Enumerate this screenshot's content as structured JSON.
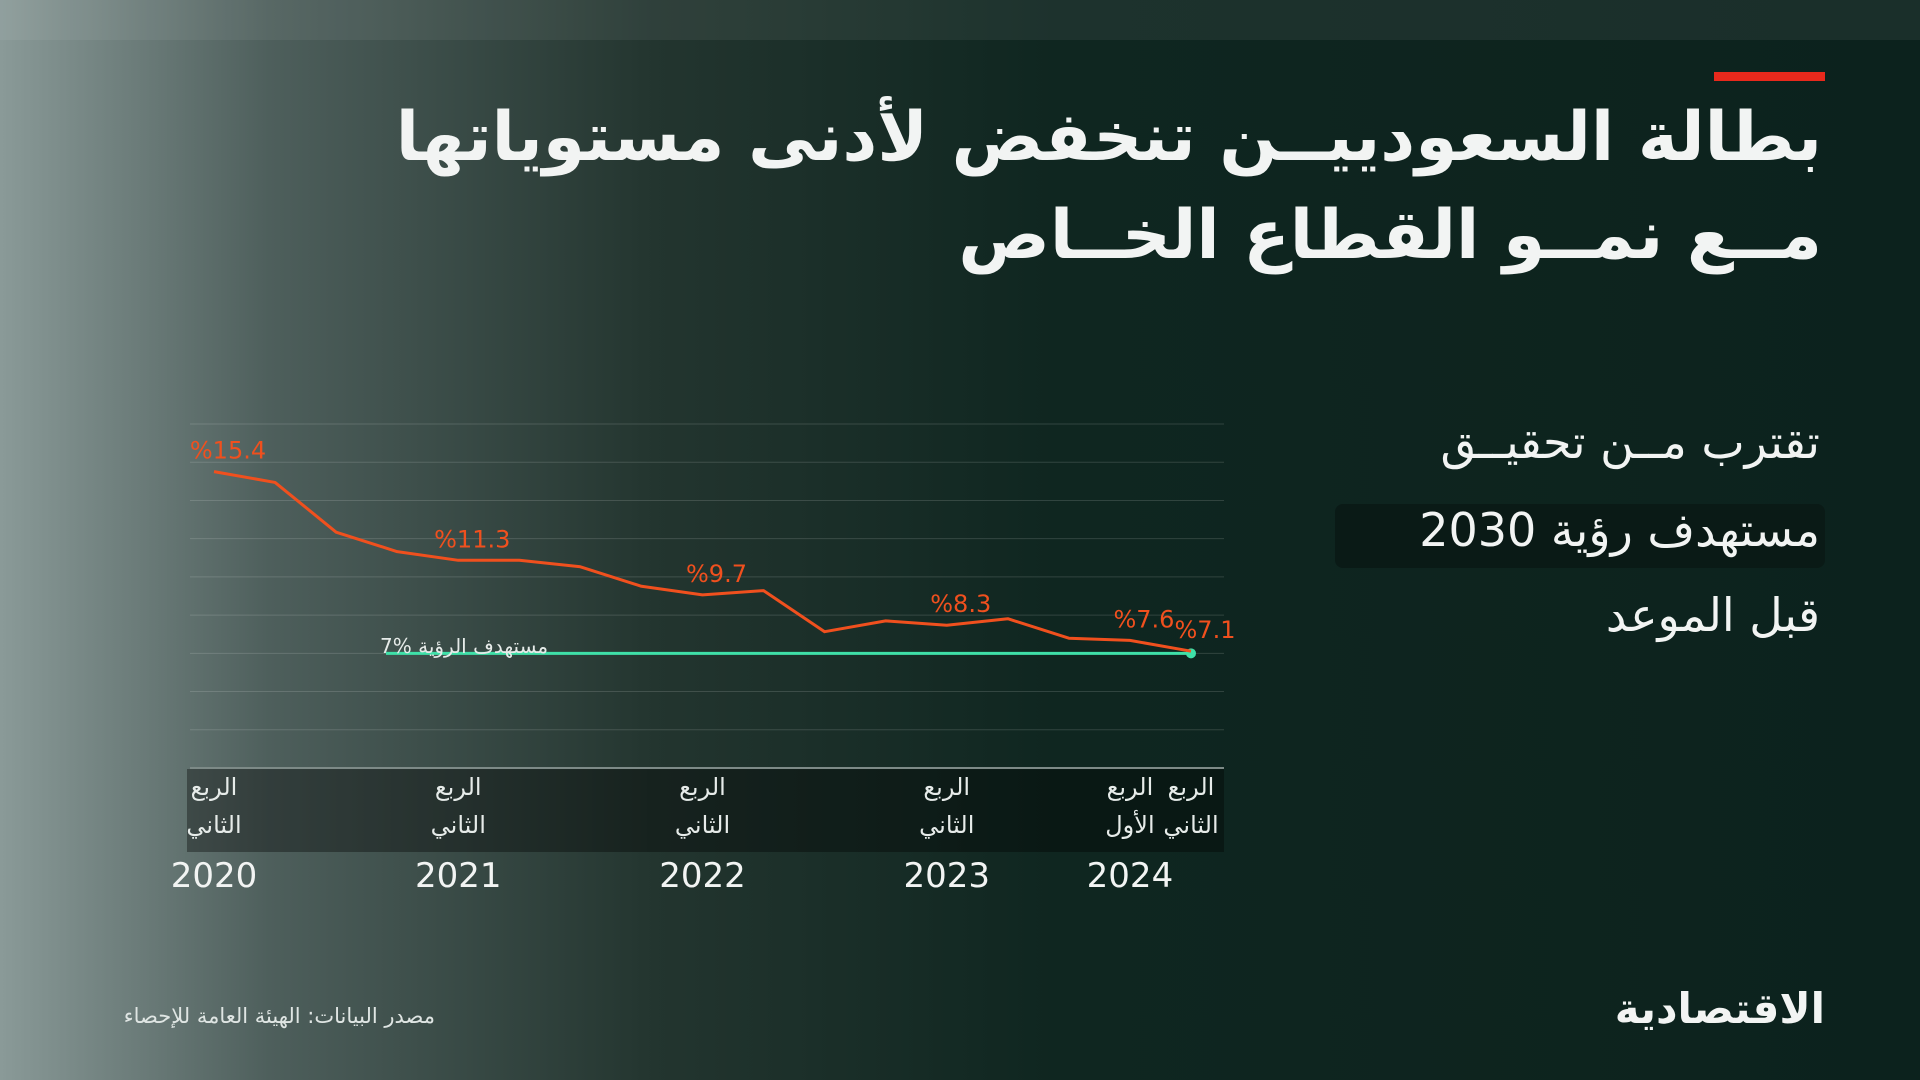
{
  "title_lines": [
    "بطالة السعودييــن تنخفض لأدنى مستوياتها",
    "مــع نمــو القطاع الخــاص"
  ],
  "subtitle_lines": [
    "تقترب مــن تحقيــق",
    "مستهدف رؤية 2030",
    "قبل الموعد"
  ],
  "source": "مصدر البيانات: الهيئة العامة للإحصاء",
  "logo": "الاقتصادية",
  "chart_data": {
    "type": "line",
    "categories": [
      "الربع الثاني",
      null,
      null,
      null,
      "الربع الثاني",
      null,
      null,
      null,
      "الربع الثاني",
      null,
      null,
      null,
      "الربع الثاني",
      null,
      null,
      "الربع الأول",
      "الربع الثاني"
    ],
    "years": [
      "2020",
      null,
      null,
      null,
      "2021",
      null,
      null,
      null,
      "2022",
      null,
      null,
      null,
      "2023",
      null,
      null,
      "2024",
      null
    ],
    "values": [
      15.4,
      14.9,
      12.6,
      11.7,
      11.3,
      11.3,
      11.0,
      10.1,
      9.7,
      9.9,
      8.0,
      8.5,
      8.3,
      8.6,
      7.7,
      7.6,
      7.1
    ],
    "value_labels": [
      "%15.4",
      null,
      null,
      null,
      "%11.3",
      null,
      null,
      null,
      "%9.7",
      null,
      null,
      null,
      "%8.3",
      null,
      null,
      "%7.6",
      "%7.1"
    ],
    "color": "#f0501e",
    "target": {
      "value": 7,
      "label": "مستهدف الرؤية %7",
      "color": "#3fe0a8"
    },
    "ylim": [
      1.7,
      17.6
    ],
    "grid": true
  }
}
